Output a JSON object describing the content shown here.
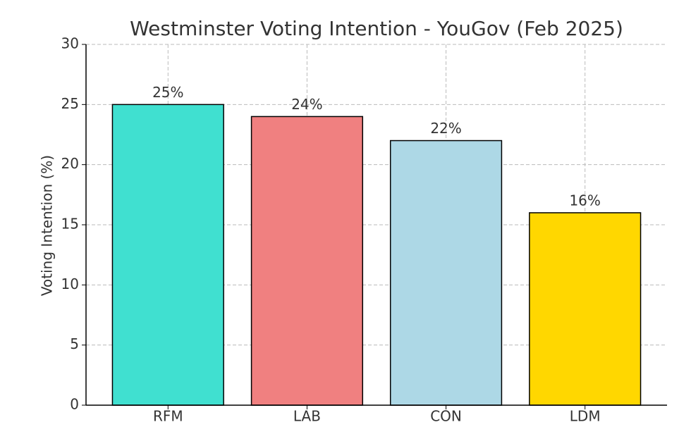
{
  "chart_data": {
    "type": "bar",
    "title": "Westminster Voting Intention - YouGov (Feb 2025)",
    "y_label": "Voting Intention (%)",
    "categories": [
      "RFM",
      "LAB",
      "CON",
      "LDM"
    ],
    "values": [
      25,
      24,
      22,
      16
    ],
    "value_labels": [
      "25%",
      "24%",
      "22%",
      "16%"
    ],
    "colors": [
      "#40e0d0",
      "#f08080",
      "#add8e6",
      "#ffd700"
    ],
    "ylim": [
      0,
      30
    ],
    "yticks": [
      0,
      5,
      10,
      15,
      20,
      25,
      30
    ],
    "grid": true
  }
}
